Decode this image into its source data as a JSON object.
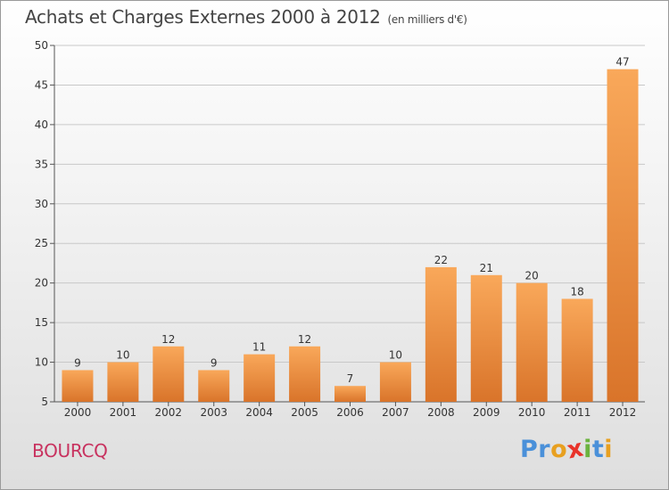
{
  "header": {
    "title": "Achats et Charges Externes 2000 à 2012",
    "unit": "(en milliers d'€)"
  },
  "footer": {
    "commune": "BOURCQ",
    "brand": "Proxiti",
    "brand_colors": [
      "#4a90d9",
      "#4a90d9",
      "#e8a020",
      "#e8332a",
      "#6cb33f",
      "#4a90d9",
      "#e8a020"
    ]
  },
  "colors": {
    "bar_light": "#f9a85a",
    "bar_dark": "#d9742a",
    "title": "#444444",
    "commune": "#c8325f"
  },
  "chart_data": {
    "type": "bar",
    "categories": [
      "2000",
      "2001",
      "2002",
      "2003",
      "2004",
      "2005",
      "2006",
      "2007",
      "2008",
      "2009",
      "2010",
      "2011",
      "2012"
    ],
    "values": [
      9,
      10,
      12,
      9,
      11,
      12,
      7,
      10,
      22,
      21,
      20,
      18,
      47
    ],
    "ylim": [
      5,
      50
    ],
    "yticks": [
      5,
      10,
      15,
      20,
      25,
      30,
      35,
      40,
      45,
      50
    ],
    "grid": true,
    "xlabel": "",
    "ylabel": ""
  }
}
